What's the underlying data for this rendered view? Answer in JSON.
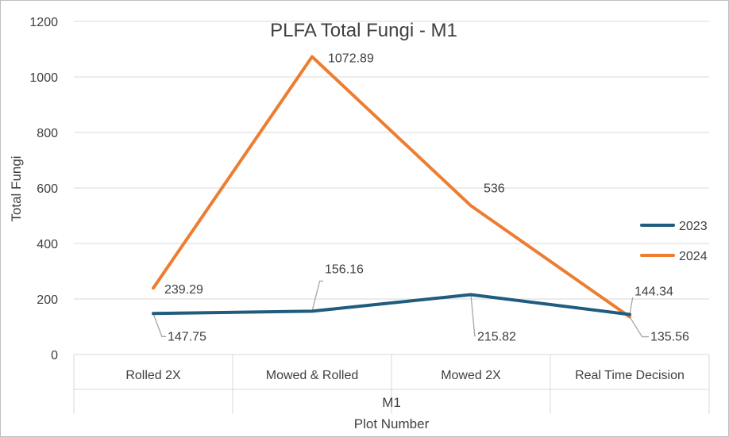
{
  "chart_data": {
    "type": "line",
    "title": "PLFA Total Fungi - M1",
    "ylabel": "Total Fungi",
    "xlabel": "Plot Number",
    "group_label": "M1",
    "categories": [
      "Rolled 2X",
      "Mowed & Rolled",
      "Mowed 2X",
      "Real Time Decision"
    ],
    "ylim": [
      0,
      1200
    ],
    "yticks": [
      0,
      200,
      400,
      600,
      800,
      1000,
      1200
    ],
    "grid": true,
    "legend_position": "right",
    "series": [
      {
        "name": "2023",
        "color": "#1f5c7e",
        "values": [
          147.75,
          156.16,
          215.82,
          144.34
        ],
        "labels": [
          "147.75",
          "156.16",
          "215.82",
          "144.34"
        ]
      },
      {
        "name": "2024",
        "color": "#ed7d31",
        "values": [
          239.29,
          1072.89,
          536,
          135.56
        ],
        "labels": [
          "239.29",
          "1072.89",
          "536",
          "135.56"
        ]
      }
    ]
  }
}
